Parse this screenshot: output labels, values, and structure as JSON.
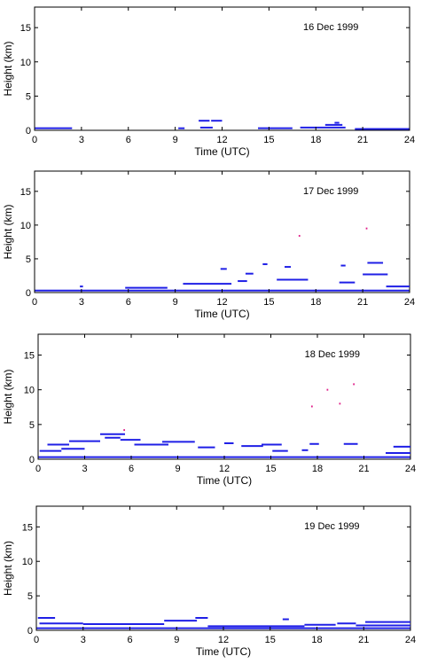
{
  "chart_data": [
    {
      "type": "scatter",
      "title": "16 Dec 1999",
      "xlabel": "Time (UTC)",
      "ylabel": "Height (km)",
      "xlim": [
        0,
        24
      ],
      "ylim": [
        0,
        18
      ],
      "x_ticks": [
        0,
        3,
        6,
        9,
        12,
        15,
        18,
        21,
        24
      ],
      "y_ticks": [
        0,
        5,
        10,
        15
      ],
      "grid": false,
      "series": [
        {
          "color": "#1f1fe6",
          "segments": [
            {
              "x": [
                0.0,
                2.4
              ],
              "y": 0.3
            },
            {
              "x": [
                9.2,
                9.6
              ],
              "y": 0.3
            },
            {
              "x": [
                10.5,
                11.2
              ],
              "y": 1.4
            },
            {
              "x": [
                11.3,
                12.0
              ],
              "y": 1.4
            },
            {
              "x": [
                10.6,
                11.4
              ],
              "y": 0.4
            },
            {
              "x": [
                14.3,
                16.5
              ],
              "y": 0.3
            },
            {
              "x": [
                17.0,
                19.9
              ],
              "y": 0.4
            },
            {
              "x": [
                18.6,
                19.7
              ],
              "y": 0.8
            },
            {
              "x": [
                19.2,
                19.5
              ],
              "y": 1.1
            },
            {
              "x": [
                20.5,
                24.0
              ],
              "y": 0.2
            }
          ]
        }
      ]
    },
    {
      "type": "scatter",
      "title": "17 Dec 1999",
      "xlabel": "Time (UTC)",
      "ylabel": "Height (km)",
      "xlim": [
        0,
        24
      ],
      "ylim": [
        0,
        18
      ],
      "x_ticks": [
        0,
        3,
        6,
        9,
        12,
        15,
        18,
        21,
        24
      ],
      "y_ticks": [
        0,
        5,
        10,
        15
      ],
      "grid": false,
      "series": [
        {
          "color": "#1f1fe6",
          "segments": [
            {
              "x": [
                0.0,
                24.0
              ],
              "y": 0.3
            },
            {
              "x": [
                2.9,
                3.1
              ],
              "y": 0.9
            },
            {
              "x": [
                5.8,
                8.5
              ],
              "y": 0.7
            },
            {
              "x": [
                9.5,
                12.6
              ],
              "y": 1.3
            },
            {
              "x": [
                11.9,
                12.3
              ],
              "y": 3.5
            },
            {
              "x": [
                13.0,
                13.6
              ],
              "y": 1.7
            },
            {
              "x": [
                13.5,
                14.0
              ],
              "y": 2.8
            },
            {
              "x": [
                14.6,
                14.9
              ],
              "y": 4.2
            },
            {
              "x": [
                15.5,
                17.5
              ],
              "y": 1.9
            },
            {
              "x": [
                16.0,
                16.4
              ],
              "y": 3.8
            },
            {
              "x": [
                19.5,
                20.5
              ],
              "y": 1.5
            },
            {
              "x": [
                19.6,
                19.9
              ],
              "y": 4.0
            },
            {
              "x": [
                21.3,
                22.3
              ],
              "y": 4.4
            },
            {
              "x": [
                21.0,
                22.6
              ],
              "y": 2.7
            },
            {
              "x": [
                22.5,
                24.0
              ],
              "y": 0.9
            }
          ]
        },
        {
          "color": "#e0208a",
          "segments": [
            {
              "x": [
                16.9,
                17.0
              ],
              "y": 8.4
            },
            {
              "x": [
                21.2,
                21.3
              ],
              "y": 9.5
            }
          ]
        }
      ]
    },
    {
      "type": "scatter",
      "title": "18 Dec 1999",
      "xlabel": "Time (UTC)",
      "ylabel": "Height (km)",
      "xlim": [
        0,
        24
      ],
      "ylim": [
        0,
        18
      ],
      "x_ticks": [
        0,
        3,
        6,
        9,
        12,
        15,
        18,
        21,
        24
      ],
      "y_ticks": [
        0,
        5,
        10,
        15
      ],
      "grid": false,
      "series": [
        {
          "color": "#1f1fe6",
          "segments": [
            {
              "x": [
                0.1,
                1.5
              ],
              "y": 1.2
            },
            {
              "x": [
                0.6,
                2.0
              ],
              "y": 2.1
            },
            {
              "x": [
                1.5,
                3.0
              ],
              "y": 1.5
            },
            {
              "x": [
                2.0,
                4.0
              ],
              "y": 2.6
            },
            {
              "x": [
                4.0,
                5.6
              ],
              "y": 3.6
            },
            {
              "x": [
                4.3,
                5.3
              ],
              "y": 3.1
            },
            {
              "x": [
                5.3,
                6.6
              ],
              "y": 2.8
            },
            {
              "x": [
                6.2,
                8.4
              ],
              "y": 2.1
            },
            {
              "x": [
                8.0,
                10.1
              ],
              "y": 2.5
            },
            {
              "x": [
                10.3,
                11.4
              ],
              "y": 1.7
            },
            {
              "x": [
                12.0,
                12.6
              ],
              "y": 2.3
            },
            {
              "x": [
                13.1,
                14.5
              ],
              "y": 1.9
            },
            {
              "x": [
                14.4,
                15.7
              ],
              "y": 2.1
            },
            {
              "x": [
                15.1,
                16.1
              ],
              "y": 1.2
            },
            {
              "x": [
                17.0,
                17.4
              ],
              "y": 1.3
            },
            {
              "x": [
                17.5,
                18.1
              ],
              "y": 2.2
            },
            {
              "x": [
                19.7,
                20.6
              ],
              "y": 2.2
            },
            {
              "x": [
                22.9,
                24.0
              ],
              "y": 1.8
            },
            {
              "x": [
                22.4,
                24.0
              ],
              "y": 0.9
            },
            {
              "x": [
                0.0,
                24.0
              ],
              "y": 0.3
            }
          ]
        },
        {
          "color": "#e0208a",
          "segments": [
            {
              "x": [
                5.5,
                5.6
              ],
              "y": 4.2
            },
            {
              "x": [
                17.6,
                17.7
              ],
              "y": 7.6
            },
            {
              "x": [
                18.6,
                18.7
              ],
              "y": 10.0
            },
            {
              "x": [
                19.4,
                19.5
              ],
              "y": 8.0
            },
            {
              "x": [
                20.3,
                20.4
              ],
              "y": 10.8
            }
          ]
        }
      ]
    },
    {
      "type": "scatter",
      "title": "19 Dec 1999",
      "xlabel": "Time (UTC)",
      "ylabel": "Height (km)",
      "xlim": [
        0,
        24
      ],
      "ylim": [
        0,
        18
      ],
      "x_ticks": [
        0,
        3,
        6,
        9,
        12,
        15,
        18,
        21,
        24
      ],
      "y_ticks": [
        0,
        5,
        10,
        15
      ],
      "grid": false,
      "series": [
        {
          "color": "#1f1fe6",
          "segments": [
            {
              "x": [
                0.1,
                1.2
              ],
              "y": 1.8
            },
            {
              "x": [
                0.2,
                3.0
              ],
              "y": 1.0
            },
            {
              "x": [
                3.0,
                8.2
              ],
              "y": 0.9
            },
            {
              "x": [
                8.2,
                10.3
              ],
              "y": 1.4
            },
            {
              "x": [
                10.2,
                11.0
              ],
              "y": 1.8
            },
            {
              "x": [
                11.0,
                17.2
              ],
              "y": 0.6
            },
            {
              "x": [
                15.8,
                16.2
              ],
              "y": 1.6
            },
            {
              "x": [
                17.2,
                19.2
              ],
              "y": 0.8
            },
            {
              "x": [
                19.3,
                20.5
              ],
              "y": 1.0
            },
            {
              "x": [
                21.1,
                24.0
              ],
              "y": 1.2
            },
            {
              "x": [
                20.5,
                24.0
              ],
              "y": 0.7
            },
            {
              "x": [
                0.0,
                24.0
              ],
              "y": 0.3
            }
          ]
        }
      ]
    }
  ]
}
